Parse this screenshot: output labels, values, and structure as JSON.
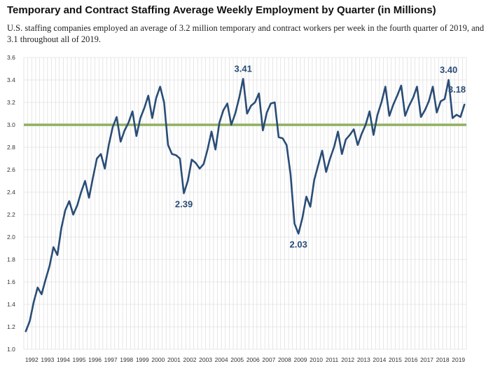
{
  "title": "Temporary and Contract Staffing Average Weekly Employment by Quarter (in Millions)",
  "subtitle": "U.S. staffing companies employed an average of 3.2 million temporary and contract workers per week in the fourth quarter of 2019, and 3.1 throughout all of 2019.",
  "colors": {
    "line": "#2a4d77",
    "reference": "#8fb060",
    "grid": "#d6d6d6",
    "label": "#2a4d77"
  },
  "chart_data": {
    "type": "line",
    "title": "Temporary and Contract Staffing Average Weekly Employment by Quarter (in Millions)",
    "xlabel": "",
    "ylabel": "",
    "ylim": [
      1.0,
      3.6
    ],
    "yticks": [
      "1.0",
      "1.2",
      "1.4",
      "1.6",
      "1.8",
      "2.0",
      "2.2",
      "2.4",
      "2.6",
      "2.8",
      "3.0",
      "3.2",
      "3.4",
      "3.6"
    ],
    "years": [
      "1992",
      "1993",
      "1994",
      "1995",
      "1996",
      "1997",
      "1998",
      "1999",
      "2000",
      "2001",
      "2002",
      "2003",
      "2004",
      "2005",
      "2006",
      "2007",
      "2008",
      "2009",
      "2010",
      "2011",
      "2012",
      "2013",
      "2014",
      "2015",
      "2016",
      "2017",
      "2018",
      "2019"
    ],
    "grid": true,
    "reference_line": 3.0,
    "series": [
      {
        "values": [
          1.16,
          1.25,
          1.42,
          1.55,
          1.49,
          1.62,
          1.74,
          1.91,
          1.84,
          2.08,
          2.24,
          2.32,
          2.2,
          2.28,
          2.4,
          2.5,
          2.35,
          2.53,
          2.7,
          2.74,
          2.61,
          2.82,
          2.98,
          3.07,
          2.85,
          2.95,
          3.02,
          3.12,
          2.9,
          3.06,
          3.15,
          3.26,
          3.06,
          3.24,
          3.34,
          3.2,
          2.82,
          2.74,
          2.73,
          2.7,
          2.39,
          2.5,
          2.69,
          2.66,
          2.61,
          2.65,
          2.78,
          2.94,
          2.78,
          3.02,
          3.13,
          3.19,
          3.0,
          3.1,
          3.24,
          3.41,
          3.1,
          3.17,
          3.2,
          3.28,
          2.95,
          3.11,
          3.19,
          3.2,
          2.89,
          2.88,
          2.82,
          2.56,
          2.12,
          2.03,
          2.17,
          2.36,
          2.27,
          2.51,
          2.64,
          2.77,
          2.58,
          2.7,
          2.8,
          2.94,
          2.74,
          2.87,
          2.91,
          2.96,
          2.82,
          2.92,
          3.0,
          3.12,
          2.91,
          3.09,
          3.2,
          3.34,
          3.08,
          3.18,
          3.26,
          3.35,
          3.08,
          3.17,
          3.24,
          3.34,
          3.07,
          3.13,
          3.21,
          3.34,
          3.11,
          3.21,
          3.23,
          3.4,
          3.06,
          3.09,
          3.07,
          3.18
        ]
      }
    ],
    "annotations": [
      {
        "text": "3.41",
        "index": 55,
        "position": "above"
      },
      {
        "text": "2.39",
        "index": 40,
        "position": "below"
      },
      {
        "text": "2.03",
        "index": 69,
        "position": "below"
      },
      {
        "text": "3.40",
        "index": 107,
        "position": "above"
      },
      {
        "text": "3.18",
        "index": 111,
        "position": "above"
      }
    ]
  }
}
